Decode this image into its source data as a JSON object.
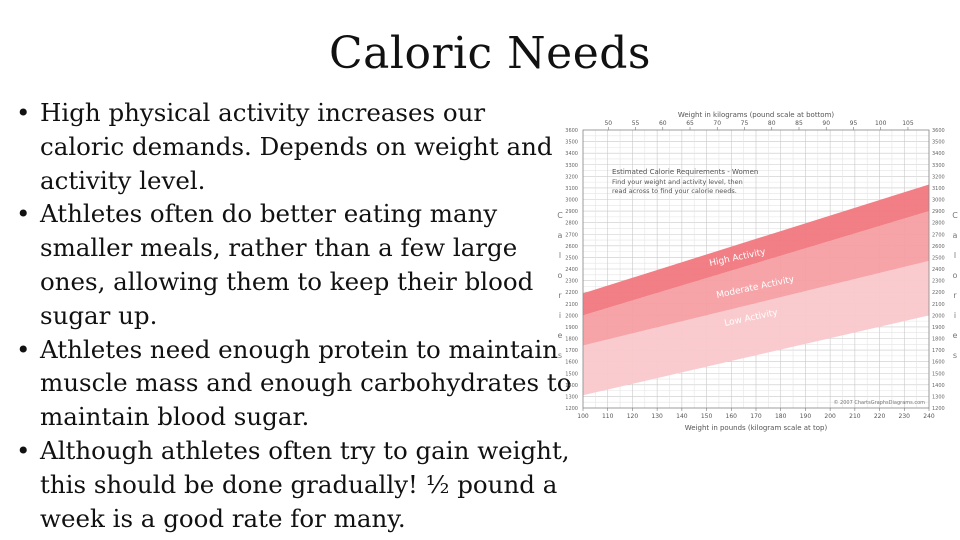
{
  "slide": {
    "title": "Caloric Needs",
    "bullets": [
      "High physical activity increases our caloric demands. Depends on weight and activity level.",
      "Athletes often do better eating many smaller meals, rather than a few large ones, allowing them to keep their blood sugar up.",
      "Athletes need enough protein to maintain muscle mass and enough carbohydrates to maintain blood sugar.",
      "Although athletes often try to gain weight, this should be done gradually! ½ pound a week is a good rate for many."
    ]
  },
  "chart_data": {
    "type": "area",
    "title": "Estimated Calorie Requirements - Women",
    "subtitle_lines": [
      "Find your weight and activity level, then",
      "read across to find your calorie needs."
    ],
    "top_axis_label": "Weight in kilograms (pound scale at bottom)",
    "bottom_axis_label": "Weight in pounds (kilogram scale at top)",
    "left_axis_label": "Calories",
    "right_axis_label": "Calories",
    "kg_ticks": [
      "50",
      "55",
      "60",
      "65",
      "70",
      "75",
      "80",
      "85",
      "90",
      "95",
      "100",
      "105"
    ],
    "lb_ticks": [
      "100",
      "110",
      "120",
      "130",
      "140",
      "150",
      "160",
      "170",
      "180",
      "190",
      "200",
      "210",
      "220",
      "230",
      "240"
    ],
    "y_ticks": [
      "1200",
      "1300",
      "1400",
      "1500",
      "1600",
      "1700",
      "1800",
      "1900",
      "2000",
      "2100",
      "2200",
      "2300",
      "2400",
      "2500",
      "2600",
      "2700",
      "2800",
      "2900",
      "3000",
      "3100",
      "3200",
      "3300",
      "3400",
      "3500",
      "3600"
    ],
    "x_range_lb": [
      100,
      240
    ],
    "y_range": [
      1200,
      3600
    ],
    "bands": [
      {
        "name": "Low Activity",
        "x": [
          100,
          240
        ],
        "lower": [
          1310,
          2000
        ],
        "upper": [
          1740,
          2470
        ],
        "color": "#fac8cb"
      },
      {
        "name": "Moderate Activity",
        "x": [
          100,
          240
        ],
        "lower": [
          1740,
          2470
        ],
        "upper": [
          2000,
          2900
        ],
        "color": "#f69fa3"
      },
      {
        "name": "High Activity",
        "x": [
          100,
          240
        ],
        "lower": [
          2000,
          2900
        ],
        "upper": [
          2190,
          3130
        ],
        "color": "#f0787e"
      }
    ],
    "copyright": "© 2007 ChartsGraphsDiagrams.com"
  }
}
